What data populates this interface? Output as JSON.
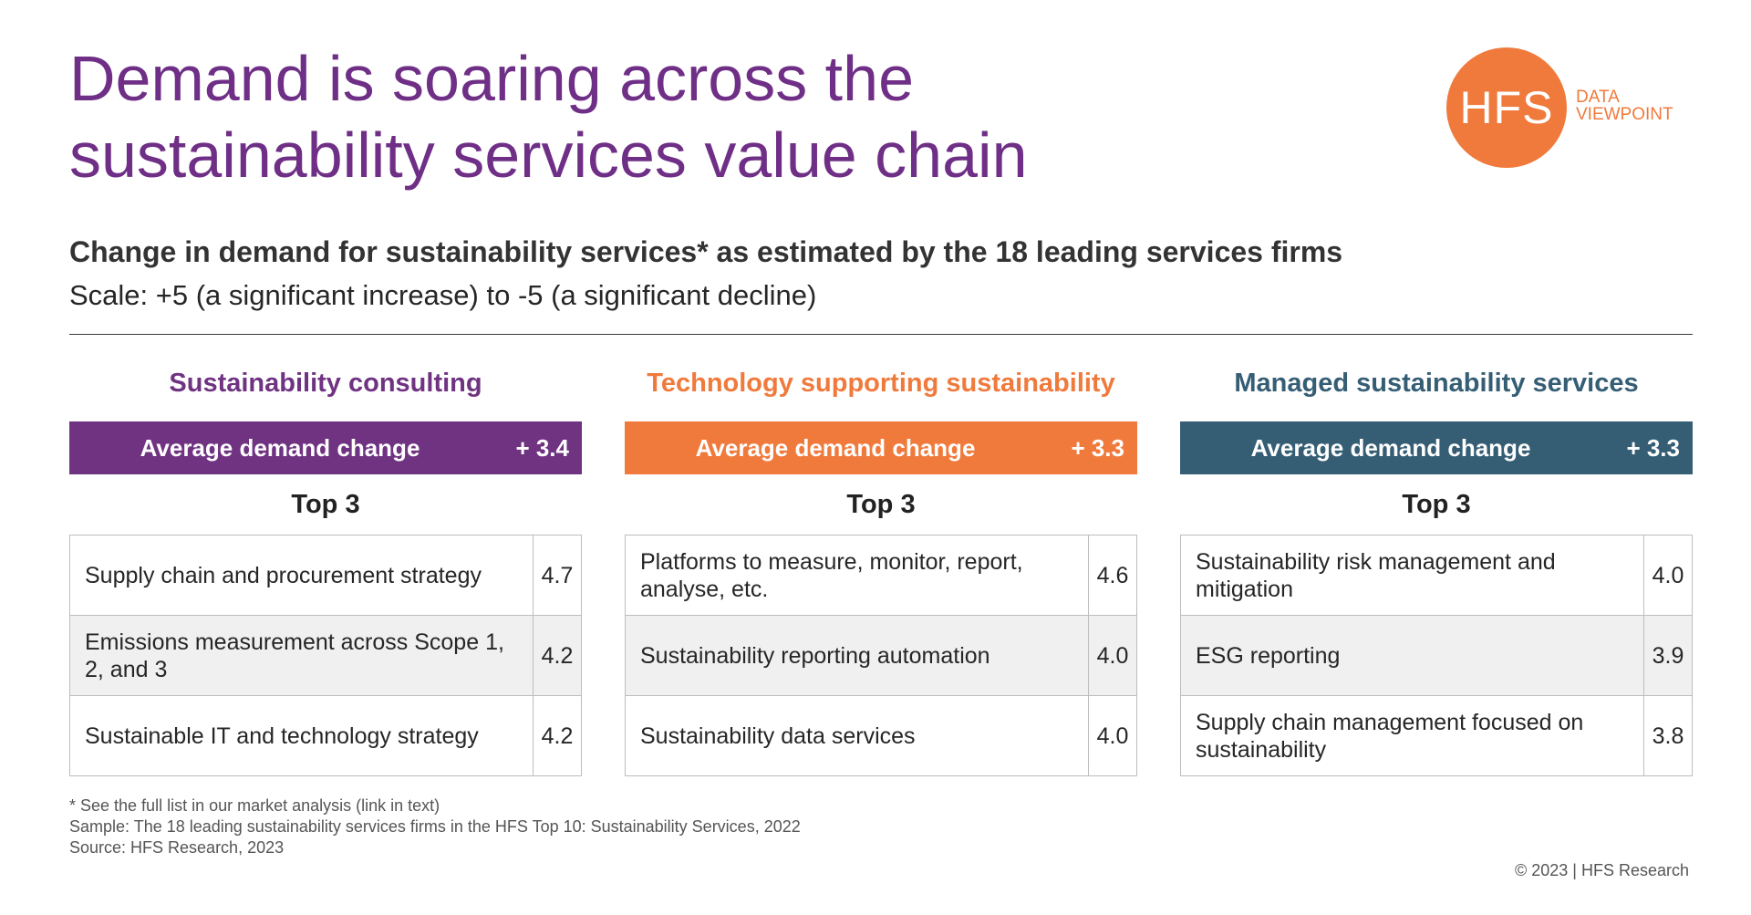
{
  "title": {
    "line1": "Demand is soaring across the",
    "line2": "sustainability services value chain"
  },
  "logo": {
    "mark": "HFS",
    "line1": "DATA",
    "line2": "VIEWPOINT",
    "color": "#f07a3c"
  },
  "subtitle": "Change in demand for sustainability services* as estimated by the 18 leading services firms",
  "scale": "Scale: +5 (a significant increase) to -5 (a significant decline)",
  "top_label": "Top 3",
  "avg_label": "Average demand change",
  "panels": [
    {
      "title": "Sustainability consulting",
      "color": "#6f3382",
      "avg": "+ 3.4",
      "items": [
        {
          "label": "Supply chain and procurement strategy",
          "score": "4.7"
        },
        {
          "label": "Emissions measurement across Scope 1, 2, and 3",
          "score": "4.2"
        },
        {
          "label": "Sustainable IT and technology strategy",
          "score": "4.2"
        }
      ]
    },
    {
      "title": "Technology supporting sustainability",
      "color": "#f07a3c",
      "avg": "+ 3.3",
      "items": [
        {
          "label": "Platforms to measure, monitor, report, analyse, etc.",
          "score": "4.6"
        },
        {
          "label": "Sustainability reporting automation",
          "score": "4.0"
        },
        {
          "label": "Sustainability data services",
          "score": "4.0"
        }
      ]
    },
    {
      "title": "Managed sustainability services",
      "color": "#355e75",
      "avg": "+ 3.3",
      "items": [
        {
          "label": "Sustainability risk management and mitigation",
          "score": "4.0"
        },
        {
          "label": "ESG reporting",
          "score": "3.9"
        },
        {
          "label": "Supply chain management focused on sustainability",
          "score": "3.8"
        }
      ]
    }
  ],
  "footnotes": [
    "* See the full list in our market analysis (link in text)",
    "Sample: The 18 leading sustainability services firms in the HFS Top 10: Sustainability Services, 2022",
    "Source: HFS Research, 2023"
  ],
  "copyright": "© 2023 | HFS Research"
}
